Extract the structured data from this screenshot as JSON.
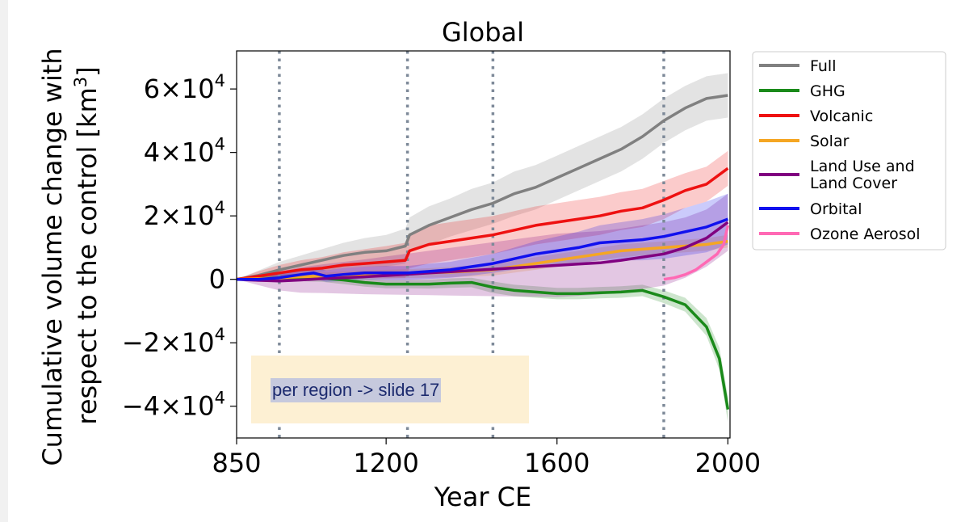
{
  "note": {
    "text": "per region -> slide 17",
    "box_color": "#fdf0d3",
    "highlight_color": "#c6c9dd"
  },
  "chart_data": {
    "type": "line",
    "title": "Global",
    "xlabel": "Year CE",
    "ylabel_line1": "Cumulative volume change with",
    "ylabel_line2": "respect to the control [km",
    "ylabel_sup": "3",
    "ylabel_end": "]",
    "xlim": [
      850,
      2005
    ],
    "ylim": [
      -50000,
      72000
    ],
    "xticks": [
      850,
      1200,
      1600,
      2000
    ],
    "xtick_labels": [
      "850",
      "1200",
      "1600",
      "2000"
    ],
    "yticks": [
      60000,
      40000,
      20000,
      0,
      -20000,
      -40000
    ],
    "ytick_labels": [
      {
        "mant": "6×10",
        "exp": "4"
      },
      {
        "mant": "4×10",
        "exp": "4"
      },
      {
        "mant": "2×10",
        "exp": "4"
      },
      {
        "mant": "0",
        "exp": ""
      },
      {
        "mant": "−2×10",
        "exp": "4"
      },
      {
        "mant": "−4×10",
        "exp": "4"
      }
    ],
    "vlines": [
      950,
      1250,
      1450,
      1850
    ],
    "vline_color": "#7e8a99",
    "grid": false,
    "legend_position": "outside-right",
    "series": [
      {
        "name": "Full",
        "color": "#808080",
        "x": [
          850,
          900,
          950,
          1000,
          1050,
          1100,
          1150,
          1200,
          1245,
          1255,
          1300,
          1350,
          1400,
          1450,
          1500,
          1550,
          1600,
          1650,
          1700,
          1750,
          1800,
          1850,
          1900,
          1950,
          2000
        ],
        "y": [
          0,
          1200,
          3000,
          4500,
          6000,
          7500,
          8500,
          9000,
          10500,
          14000,
          17000,
          19500,
          22000,
          24000,
          27000,
          29000,
          32000,
          35000,
          38000,
          41000,
          45000,
          50000,
          54000,
          57000,
          58000
        ],
        "band": [
          0,
          1500,
          2500,
          3000,
          3500,
          4000,
          4500,
          5000,
          5500,
          5500,
          6000,
          6000,
          6500,
          6500,
          7000,
          7000,
          7000,
          7000,
          7000,
          7000,
          7000,
          7000,
          7000,
          7000,
          7000
        ]
      },
      {
        "name": "GHG",
        "color": "#1a8a1a",
        "x": [
          850,
          900,
          950,
          1000,
          1050,
          1100,
          1150,
          1200,
          1250,
          1300,
          1350,
          1400,
          1450,
          1500,
          1550,
          1600,
          1650,
          1700,
          1750,
          1800,
          1850,
          1900,
          1950,
          1980,
          2000
        ],
        "y": [
          0,
          300,
          500,
          600,
          400,
          -200,
          -1000,
          -1500,
          -1500,
          -1500,
          -1200,
          -1000,
          -2500,
          -3500,
          -4000,
          -4500,
          -4500,
          -4200,
          -4000,
          -3500,
          -5500,
          -8000,
          -15000,
          -25000,
          -41000
        ],
        "band": [
          0,
          800,
          1000,
          1200,
          1200,
          1300,
          1300,
          1300,
          1300,
          1400,
          1500,
          1500,
          1800,
          1800,
          1800,
          1800,
          1800,
          1800,
          1800,
          1800,
          2000,
          2200,
          2800,
          3500,
          4000
        ]
      },
      {
        "name": "Volcanic",
        "color": "#ee1111",
        "x": [
          850,
          900,
          950,
          1000,
          1050,
          1100,
          1150,
          1200,
          1245,
          1255,
          1300,
          1350,
          1400,
          1450,
          1500,
          1550,
          1600,
          1650,
          1700,
          1750,
          1800,
          1850,
          1900,
          1950,
          2000
        ],
        "y": [
          0,
          1000,
          2000,
          3000,
          3500,
          4500,
          5000,
          5500,
          6000,
          9000,
          11000,
          12000,
          13000,
          14000,
          15500,
          17000,
          18000,
          19000,
          20000,
          21500,
          22500,
          25000,
          28000,
          30000,
          35000
        ],
        "band": [
          0,
          1500,
          2500,
          3000,
          3500,
          4000,
          4500,
          5000,
          5500,
          5500,
          6000,
          6000,
          6000,
          6000,
          6000,
          6000,
          6000,
          6000,
          6000,
          6000,
          6000,
          6000,
          5500,
          5500,
          5500
        ]
      },
      {
        "name": "Solar",
        "color": "#f5a623",
        "x": [
          850,
          900,
          950,
          1000,
          1050,
          1100,
          1150,
          1200,
          1250,
          1300,
          1350,
          1400,
          1450,
          1500,
          1550,
          1600,
          1650,
          1700,
          1750,
          1800,
          1850,
          1900,
          1950,
          2000
        ],
        "y": [
          0,
          200,
          500,
          800,
          1000,
          1200,
          1400,
          1600,
          1800,
          2000,
          2300,
          2600,
          3000,
          4000,
          5000,
          6000,
          7000,
          8000,
          9000,
          9500,
          10000,
          10500,
          11000,
          12000
        ],
        "band": [
          0,
          500,
          800,
          1000,
          1200,
          1200,
          1300,
          1400,
          1400,
          1500,
          1600,
          1700,
          1800,
          1900,
          2000,
          2000,
          2000,
          2000,
          2000,
          2000,
          2000,
          2000,
          2000,
          2000
        ]
      },
      {
        "name": "Land Use and\nLand Cover",
        "color": "#800080",
        "x": [
          850,
          900,
          950,
          1000,
          1050,
          1100,
          1150,
          1200,
          1250,
          1300,
          1350,
          1400,
          1450,
          1500,
          1550,
          1600,
          1650,
          1700,
          1750,
          1800,
          1850,
          1900,
          1950,
          2000
        ],
        "y": [
          0,
          -300,
          -500,
          -200,
          200,
          500,
          800,
          1200,
          1600,
          2000,
          2400,
          2800,
          3200,
          3600,
          4000,
          4400,
          4800,
          5200,
          6000,
          7000,
          8000,
          10000,
          13000,
          18000
        ],
        "band": [
          0,
          1500,
          3000,
          4000,
          4500,
          5000,
          5500,
          6000,
          6500,
          7000,
          7500,
          8000,
          8500,
          9000,
          9500,
          10000,
          10000,
          10000,
          10000,
          10000,
          10000,
          9500,
          9000,
          9000
        ]
      },
      {
        "name": "Orbital",
        "color": "#1010ee",
        "x": [
          850,
          900,
          950,
          1000,
          1030,
          1060,
          1100,
          1150,
          1200,
          1250,
          1300,
          1350,
          1400,
          1450,
          1500,
          1550,
          1600,
          1650,
          1700,
          1750,
          1800,
          1850,
          1900,
          1950,
          2000
        ],
        "y": [
          0,
          0,
          500,
          1500,
          2000,
          1000,
          1500,
          2000,
          2000,
          2000,
          2500,
          3000,
          4000,
          5000,
          6500,
          8000,
          9000,
          10000,
          11500,
          12000,
          12500,
          13500,
          15000,
          16500,
          19000
        ],
        "band": [
          0,
          800,
          1200,
          1500,
          1800,
          1800,
          2000,
          2000,
          2200,
          2200,
          2400,
          2500,
          2800,
          3000,
          3500,
          4000,
          4500,
          5000,
          5500,
          6000,
          6500,
          7000,
          7500,
          8000,
          8000
        ]
      },
      {
        "name": "Ozone Aerosol",
        "color": "#ff69b4",
        "x": [
          1850,
          1875,
          1900,
          1925,
          1950,
          1975,
          1990,
          2000
        ],
        "y": [
          0,
          500,
          1500,
          3000,
          5500,
          8000,
          11000,
          17000
        ],
        "band": []
      }
    ]
  }
}
